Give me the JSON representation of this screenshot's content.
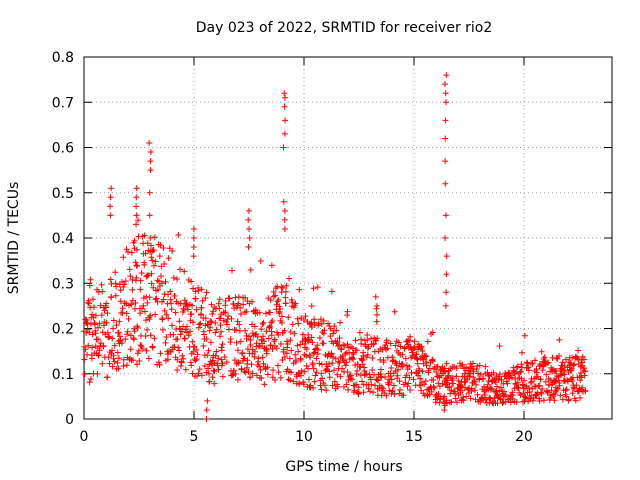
{
  "chart_data": {
    "type": "scatter",
    "title": "Day 023 of 2022, SRMTID for receiver rio2",
    "xlabel": "GPS time / hours",
    "ylabel": "SRMTID / TECUs",
    "xlim": [
      0,
      24
    ],
    "ylim": [
      0,
      0.8
    ],
    "x_ticks": [
      0,
      5,
      10,
      15,
      20
    ],
    "x_tick_labels": [
      "0",
      "5",
      "10",
      "15",
      "20"
    ],
    "y_ticks": [
      0,
      0.1,
      0.2,
      0.3,
      0.4,
      0.5,
      0.6,
      0.7,
      0.8
    ],
    "y_tick_labels": [
      "0",
      "0.1",
      "0.2",
      "0.3",
      "0.4",
      "0.5",
      "0.6",
      "0.7",
      "0.8"
    ],
    "grid": true,
    "marker": "+",
    "series_color": "#ff0000",
    "trend": {
      "x": [
        0,
        1,
        2,
        3,
        4,
        5,
        6,
        7,
        8,
        9,
        10,
        11,
        12,
        13,
        14,
        15,
        16,
        16.5,
        17,
        18,
        19,
        20,
        21,
        22,
        22.8
      ],
      "y": [
        0.17,
        0.2,
        0.25,
        0.28,
        0.24,
        0.2,
        0.17,
        0.18,
        0.16,
        0.2,
        0.15,
        0.14,
        0.12,
        0.12,
        0.11,
        0.12,
        0.08,
        0.07,
        0.08,
        0.08,
        0.07,
        0.08,
        0.09,
        0.09,
        0.09
      ]
    },
    "spikes": [
      {
        "x": 1.2,
        "y": [
          0.51,
          0.49,
          0.47,
          0.45
        ]
      },
      {
        "x": 2.4,
        "y": [
          0.51,
          0.49,
          0.47,
          0.45,
          0.43
        ]
      },
      {
        "x": 3.0,
        "y": [
          0.61,
          0.59,
          0.57,
          0.55,
          0.5,
          0.45,
          0.4,
          0.37
        ]
      },
      {
        "x": 5.0,
        "y": [
          0.42,
          0.4,
          0.38,
          0.36
        ]
      },
      {
        "x": 7.5,
        "y": [
          0.46,
          0.44,
          0.42,
          0.4,
          0.38
        ]
      },
      {
        "x": 9.1,
        "y": [
          0.72,
          0.71,
          0.69,
          0.66,
          0.63,
          0.6,
          0.48,
          0.46,
          0.44,
          0.42
        ]
      },
      {
        "x": 16.45,
        "y": [
          0.76,
          0.74,
          0.72,
          0.7,
          0.66,
          0.62,
          0.57,
          0.52,
          0.45,
          0.4,
          0.36,
          0.32,
          0.28,
          0.25
        ]
      },
      {
        "x": 13.3,
        "y": [
          0.27,
          0.25,
          0.23
        ]
      },
      {
        "x": 5.6,
        "y": [
          0.0,
          0.02,
          0.04
        ]
      },
      {
        "x": 16.4,
        "y": [
          0.02,
          0.03,
          0.05
        ]
      }
    ]
  }
}
